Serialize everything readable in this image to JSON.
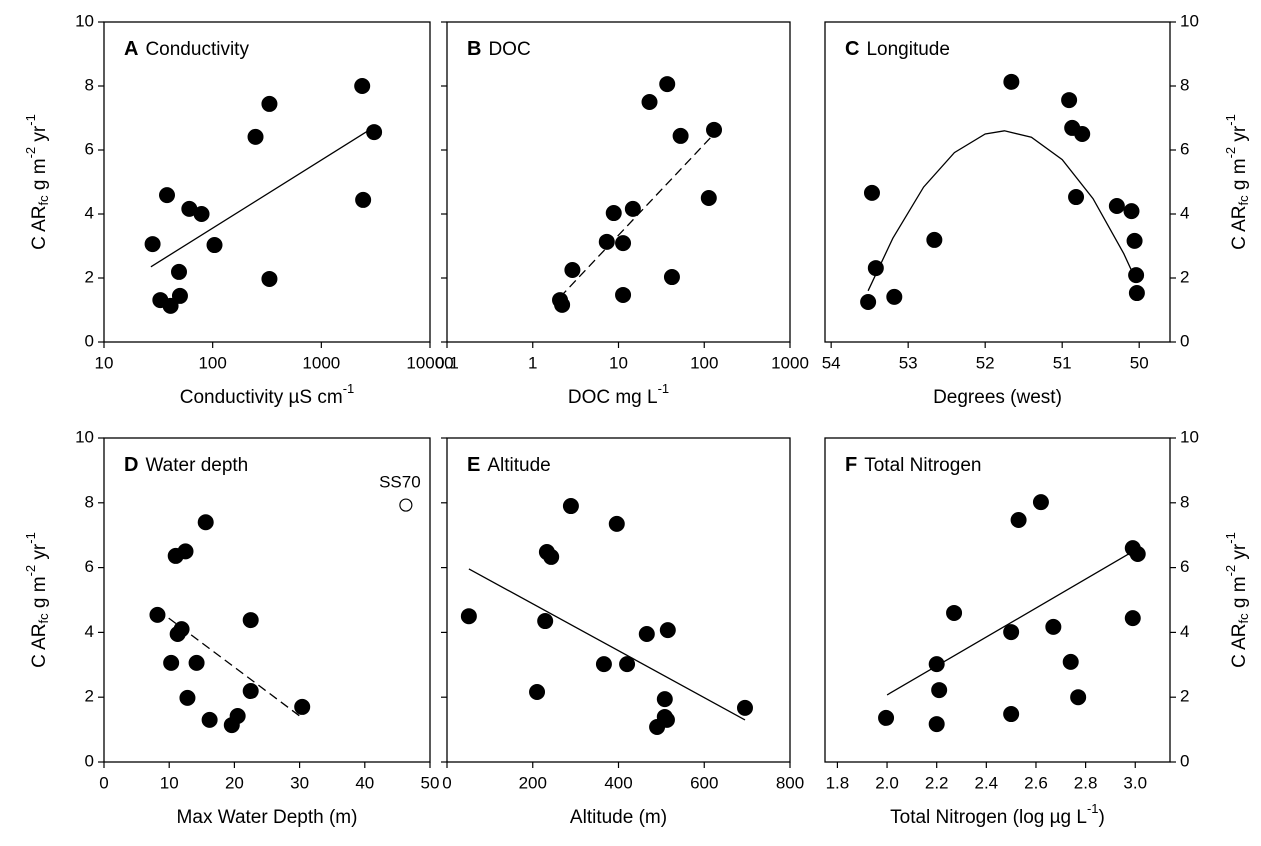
{
  "chart_data": [
    {
      "type": "scatter",
      "letter": "A",
      "title": "Conductivity",
      "xlabel": [
        "Conductivity µS cm",
        "-1"
      ],
      "ylabel": [
        "C AR",
        "fc",
        " g m",
        "-2",
        " yr",
        "-1"
      ],
      "xscale": "log",
      "xlim": [
        10,
        10000
      ],
      "xticks": [
        10,
        100,
        1000,
        10000
      ],
      "ylim": [
        0,
        10
      ],
      "yticks": [
        0,
        2,
        4,
        6,
        8,
        10
      ],
      "color": "#000000",
      "x": [
        28,
        33,
        38,
        41,
        49,
        50,
        61,
        79,
        104,
        248,
        333,
        333,
        2377,
        2425,
        3060
      ],
      "values": [
        3.06,
        1.31,
        4.59,
        1.13,
        2.19,
        1.44,
        4.16,
        4.0,
        3.03,
        6.41,
        7.44,
        1.97,
        8.0,
        4.44,
        6.56
      ],
      "trend": {
        "x": [
          27,
          3000
        ],
        "y": [
          2.35,
          6.7
        ],
        "dashed": false
      }
    },
    {
      "type": "scatter",
      "letter": "B",
      "title": "DOC",
      "xlabel": [
        "DOC mg L",
        "-1"
      ],
      "xscale": "log",
      "xlim": [
        0.1,
        1000
      ],
      "xticks": [
        0.1,
        1,
        10,
        100,
        1000
      ],
      "ylim": [
        0,
        10
      ],
      "yticks": [
        0,
        2,
        4,
        6,
        8,
        10
      ],
      "color": "#000000",
      "x": [
        2.08,
        2.2,
        2.9,
        7.3,
        8.8,
        11.3,
        11.3,
        14.7,
        23,
        37,
        42,
        53,
        113,
        130
      ],
      "values": [
        1.31,
        1.16,
        2.25,
        3.13,
        4.03,
        3.09,
        1.47,
        4.16,
        7.5,
        8.06,
        2.03,
        6.44,
        4.5,
        6.63
      ],
      "trend": {
        "x": [
          2.08,
          130
        ],
        "y": [
          1.4,
          6.5
        ],
        "dashed": true
      }
    },
    {
      "type": "scatter",
      "letter": "C",
      "title": "Longitude",
      "xlabel": [
        "Degrees (west)"
      ],
      "ylabel": [
        "C AR",
        "fc",
        " g m",
        "-2",
        " yr",
        "-1"
      ],
      "xscale": "linear",
      "xlim": [
        54.08,
        49.6
      ],
      "xticks": [
        54,
        53,
        52,
        51,
        50
      ],
      "ylim": [
        0,
        10
      ],
      "yticks": [
        0,
        2,
        4,
        6,
        8,
        10
      ],
      "color": "#000000",
      "x": [
        53.52,
        53.47,
        53.42,
        53.18,
        52.66,
        51.66,
        50.91,
        50.87,
        50.74,
        50.82,
        50.29,
        50.1,
        50.06,
        50.04,
        50.03
      ],
      "values": [
        1.25,
        4.66,
        2.31,
        1.41,
        3.19,
        8.13,
        7.56,
        6.69,
        6.5,
        4.53,
        4.25,
        4.09,
        3.16,
        2.09,
        1.53
      ],
      "trend": {
        "x": [
          53.52,
          53.2,
          52.8,
          52.4,
          52,
          51.75,
          51.4,
          51,
          50.6,
          50.2,
          50.03
        ],
        "y": [
          1.6,
          3.24,
          4.84,
          5.92,
          6.5,
          6.6,
          6.4,
          5.7,
          4.48,
          2.76,
          1.87
        ],
        "dashed": false
      }
    },
    {
      "type": "scatter",
      "letter": "D",
      "title": "Water depth",
      "xlabel": [
        "Max Water Depth (m)"
      ],
      "ylabel": [
        "C AR",
        "fc",
        " g m",
        "-2",
        " yr",
        "-1"
      ],
      "xscale": "linear",
      "xlim": [
        0,
        50
      ],
      "xticks": [
        0,
        10,
        20,
        30,
        40,
        50
      ],
      "ylim": [
        0,
        10
      ],
      "yticks": [
        0,
        2,
        4,
        6,
        8,
        10
      ],
      "color": "#000000",
      "x": [
        15.6,
        12.5,
        11.0,
        8.2,
        11.3,
        11.9,
        22.5,
        10.3,
        14.2,
        12.8,
        22.5,
        16.2,
        20.5,
        19.6,
        30.4
      ],
      "values": [
        7.4,
        6.5,
        6.36,
        4.54,
        3.95,
        4.1,
        4.38,
        3.06,
        3.06,
        1.98,
        2.19,
        1.3,
        1.42,
        1.14,
        1.7
      ],
      "trend": {
        "x": [
          8.2,
          30.4
        ],
        "y": [
          4.7,
          1.36
        ],
        "dashed": true
      },
      "outlier": {
        "label": "SS70",
        "x": 46.3,
        "y": 7.93
      }
    },
    {
      "type": "scatter",
      "letter": "E",
      "title": "Altitude",
      "xlabel": [
        "Altitude (m)"
      ],
      "xscale": "linear",
      "xlim": [
        0,
        800
      ],
      "xticks": [
        0,
        200,
        400,
        600,
        800
      ],
      "ylim": [
        0,
        10
      ],
      "yticks": [
        0,
        2,
        4,
        6,
        8,
        10
      ],
      "color": "#000000",
      "x": [
        51,
        210,
        233,
        243,
        229,
        289,
        396,
        366,
        420,
        466,
        515,
        508,
        508,
        513,
        490,
        695
      ],
      "values": [
        4.5,
        2.16,
        6.48,
        6.33,
        4.35,
        7.9,
        7.35,
        3.02,
        3.02,
        3.95,
        4.07,
        1.94,
        1.39,
        1.3,
        1.08,
        1.67
      ],
      "trend": {
        "x": [
          51,
          695
        ],
        "y": [
          5.96,
          1.3
        ],
        "dashed": false
      }
    },
    {
      "type": "scatter",
      "letter": "F",
      "title": "Total Nitrogen",
      "xlabel": [
        "Total Nitrogen (log µg L",
        "-1",
        ")"
      ],
      "ylabel": [
        "C AR",
        "fc",
        " g m",
        "-2",
        " yr",
        "-1"
      ],
      "xscale": "linear",
      "xlim": [
        1.75,
        3.14
      ],
      "xticks": [
        1.8,
        {
          "value": 2,
          "label": "2.0"
        },
        2.2,
        2.4,
        2.6,
        2.8,
        {
          "value": 3,
          "label": "3.0"
        }
      ],
      "ylim": [
        0,
        10
      ],
      "yticks": [
        0,
        2,
        4,
        6,
        8,
        10
      ],
      "color": "#000000",
      "x": [
        1.996,
        2.2,
        2.21,
        2.2,
        2.27,
        2.5,
        2.5,
        2.53,
        2.62,
        2.67,
        2.74,
        2.77,
        2.99,
        3.01,
        2.99
      ],
      "values": [
        1.36,
        3.02,
        2.22,
        1.17,
        4.6,
        4.01,
        1.48,
        7.47,
        8.02,
        4.17,
        3.09,
        2.0,
        6.6,
        6.42,
        4.44
      ],
      "trend": {
        "x": [
          2.0,
          3.0
        ],
        "y": [
          2.07,
          6.54
        ],
        "dashed": false
      }
    }
  ]
}
